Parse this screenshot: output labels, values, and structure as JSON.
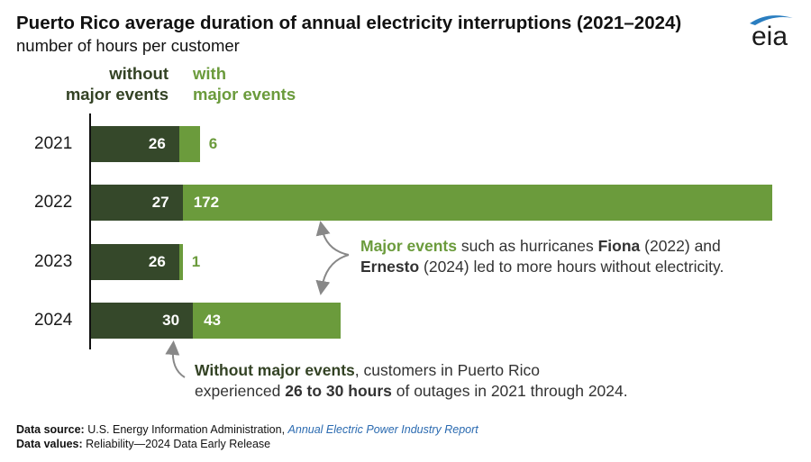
{
  "title": "Puerto Rico average duration of annual electricity interruptions (2021–2024)",
  "subtitle": "number of hours per customer",
  "logo": {
    "text": "eia",
    "icon": "eia-logo-swoosh"
  },
  "colors": {
    "without_major_events": "#35482a",
    "with_major_events": "#6b9b3c",
    "text_dark_green": "#334224",
    "link": "#2a6ab0"
  },
  "legend": {
    "without": [
      "without",
      "major events"
    ],
    "with": [
      "with",
      "major events"
    ]
  },
  "chart_data": {
    "type": "bar",
    "orientation": "horizontal",
    "stacked": true,
    "title": "Puerto Rico average duration of annual electricity interruptions (2021–2024)",
    "subtitle": "number of hours per customer",
    "categories": [
      "2021",
      "2022",
      "2023",
      "2024"
    ],
    "series": [
      {
        "name": "without major events",
        "values": [
          26,
          27,
          26,
          30
        ]
      },
      {
        "name": "with major events",
        "values": [
          6,
          172,
          1,
          43
        ]
      }
    ],
    "xlim": [
      0,
      199
    ],
    "grid": false,
    "legend_position": "top-left"
  },
  "annotations": {
    "major": {
      "line1": {
        "p1": "Major events",
        "p2": " such as hurricanes ",
        "p3": "Fiona",
        "p4": " (2022) and"
      },
      "line2": {
        "p1": "Ernesto",
        "p2": " (2024) led to more hours without electricity."
      }
    },
    "without": {
      "line1": {
        "p1": "Without major events",
        "p2": ", customers in Puerto Rico"
      },
      "line2": {
        "p1": "experienced ",
        "p2": "26 to 30 hours",
        "p3": " of outages in 2021 through 2024."
      }
    }
  },
  "footer": {
    "source_label": "Data source:",
    "source_text": " U.S. Energy Information Administration, ",
    "source_link": "Annual Electric Power Industry Report",
    "values_label": "Data values:",
    "values_text": " Reliability—2024 Data Early Release"
  }
}
